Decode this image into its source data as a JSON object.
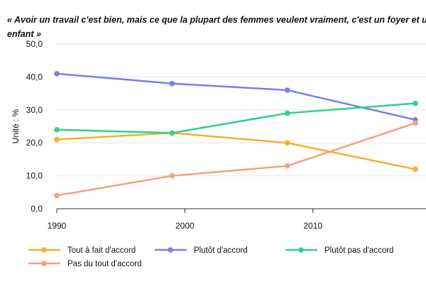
{
  "chart_data": {
    "type": "line",
    "title": "« Avoir un travail c'est bien, mais ce que la plupart des femmes veulent vraiment, c'est un foyer et un enfant »",
    "ylabel": "Unité : %",
    "xlabel": "",
    "x": [
      1990,
      1999,
      2008,
      2018
    ],
    "xlim": [
      1990,
      2018
    ],
    "xticks": [
      "1990",
      "2000",
      "2010"
    ],
    "xtick_values": [
      1990,
      2000,
      2010
    ],
    "ylim": [
      0,
      50
    ],
    "yticks": [
      "0,0",
      "10,0",
      "20,0",
      "30,0",
      "40,0",
      "50,0"
    ],
    "ytick_values": [
      0,
      10,
      20,
      30,
      40,
      50
    ],
    "grid": "horizontal",
    "legend_position": "bottom",
    "series": [
      {
        "name": "Tout à fait d'accord",
        "color": "#F5B02E",
        "values": [
          21,
          23,
          20,
          12
        ]
      },
      {
        "name": "Plutôt d'accord",
        "color": "#7C7CF0",
        "values": [
          41,
          38,
          36,
          27
        ]
      },
      {
        "name": "Plutôt pas d'accord",
        "color": "#2ED18A",
        "values": [
          24,
          23,
          29,
          32
        ]
      },
      {
        "name": "Pas du tout d'accord",
        "color": "#F7A07A",
        "values": [
          4,
          10,
          13,
          26
        ]
      }
    ]
  }
}
